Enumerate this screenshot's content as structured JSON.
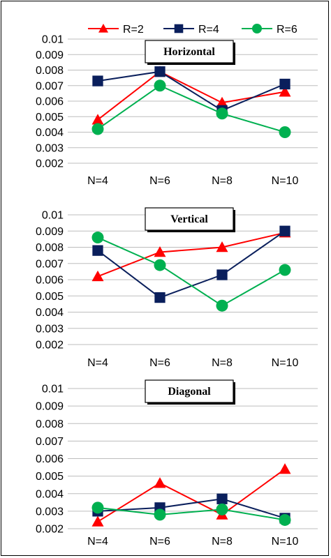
{
  "chart_data": [
    {
      "type": "line",
      "title": "Horizontal",
      "categories": [
        "N=4",
        "N=6",
        "N=8",
        "N=10"
      ],
      "ylim": [
        0.002,
        0.01
      ],
      "yticks": [
        "0.002",
        "0.003",
        "0.004",
        "0.005",
        "0.006",
        "0.007",
        "0.008",
        "0.009",
        "0.01"
      ],
      "grid": true,
      "series": [
        {
          "name": "R=2",
          "color": "#ff0000",
          "marker": "triangle",
          "values": [
            0.0048,
            0.0079,
            0.0059,
            0.0066
          ]
        },
        {
          "name": "R=4",
          "color": "#0a1f5c",
          "marker": "square",
          "values": [
            0.0073,
            0.0079,
            0.0054,
            0.0071
          ]
        },
        {
          "name": "R=6",
          "color": "#00b050",
          "marker": "circle",
          "values": [
            0.0042,
            0.007,
            0.0052,
            0.004
          ]
        }
      ]
    },
    {
      "type": "line",
      "title": "Vertical",
      "categories": [
        "N=4",
        "N=6",
        "N=8",
        "N=10"
      ],
      "ylim": [
        0.002,
        0.01
      ],
      "yticks": [
        "0.002",
        "0.003",
        "0.004",
        "0.005",
        "0.006",
        "0.007",
        "0.008",
        "0.009",
        "0.01"
      ],
      "grid": true,
      "series": [
        {
          "name": "R=2",
          "color": "#ff0000",
          "marker": "triangle",
          "values": [
            0.0062,
            0.0077,
            0.008,
            0.0089
          ]
        },
        {
          "name": "R=4",
          "color": "#0a1f5c",
          "marker": "square",
          "values": [
            0.0078,
            0.0049,
            0.0063,
            0.009
          ]
        },
        {
          "name": "R=6",
          "color": "#00b050",
          "marker": "circle",
          "values": [
            0.0086,
            0.0069,
            0.0044,
            0.0066
          ]
        }
      ]
    },
    {
      "type": "line",
      "title": "Diagonal",
      "categories": [
        "N=4",
        "N=6",
        "N=8",
        "N=10"
      ],
      "ylim": [
        0.002,
        0.01
      ],
      "yticks": [
        "0.002",
        "0.003",
        "0.004",
        "0.005",
        "0.006",
        "0.007",
        "0.008",
        "0.009",
        "0.01"
      ],
      "grid": true,
      "series": [
        {
          "name": "R=2",
          "color": "#ff0000",
          "marker": "triangle",
          "values": [
            0.0024,
            0.0046,
            0.0028,
            0.0054
          ]
        },
        {
          "name": "R=4",
          "color": "#0a1f5c",
          "marker": "square",
          "values": [
            0.003,
            0.0032,
            0.0037,
            0.0026
          ]
        },
        {
          "name": "R=6",
          "color": "#00b050",
          "marker": "circle",
          "values": [
            0.0032,
            0.0028,
            0.0031,
            0.0025
          ]
        }
      ]
    }
  ],
  "legend": {
    "position": "top",
    "items": [
      {
        "label": "R=2",
        "color": "#ff0000",
        "marker": "triangle"
      },
      {
        "label": "R=4",
        "color": "#0a1f5c",
        "marker": "square"
      },
      {
        "label": "R=6",
        "color": "#00b050",
        "marker": "circle"
      }
    ]
  }
}
